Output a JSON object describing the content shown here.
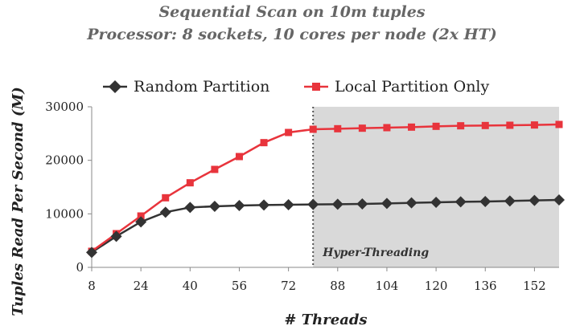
{
  "chart_data": {
    "type": "line",
    "title": "Sequential Scan on 10m tuples",
    "subtitle": "Processor: 8 sockets, 10 cores per node (2x HT)",
    "xlabel": "# Threads",
    "ylabel": "Tuples Read Per Second (M)",
    "xticks": [
      8,
      24,
      40,
      56,
      72,
      88,
      104,
      120,
      136,
      152
    ],
    "yticks": [
      0,
      10000,
      20000,
      30000
    ],
    "xlim": [
      8,
      160
    ],
    "ylim": [
      0,
      30000
    ],
    "x": [
      8,
      16,
      24,
      32,
      40,
      48,
      56,
      64,
      72,
      80,
      88,
      96,
      104,
      112,
      120,
      128,
      136,
      144,
      152,
      160
    ],
    "series": [
      {
        "name": "Random Partition",
        "color": "#333333",
        "marker": "diamond",
        "values": [
          2800,
          5800,
          8500,
          10300,
          11200,
          11400,
          11550,
          11650,
          11700,
          11750,
          11800,
          11850,
          11950,
          12050,
          12150,
          12250,
          12300,
          12400,
          12500,
          12600
        ]
      },
      {
        "name": "Local Partition Only",
        "color": "#e8343c",
        "marker": "square",
        "values": [
          3000,
          6300,
          9600,
          13000,
          15800,
          18300,
          20700,
          23300,
          25200,
          25800,
          25900,
          26000,
          26100,
          26200,
          26350,
          26450,
          26500,
          26550,
          26600,
          26700
        ]
      }
    ],
    "annotation": {
      "label": "Hyper-Threading",
      "x_start": 80,
      "x_end": 160
    },
    "legend": "top",
    "grid": false
  }
}
